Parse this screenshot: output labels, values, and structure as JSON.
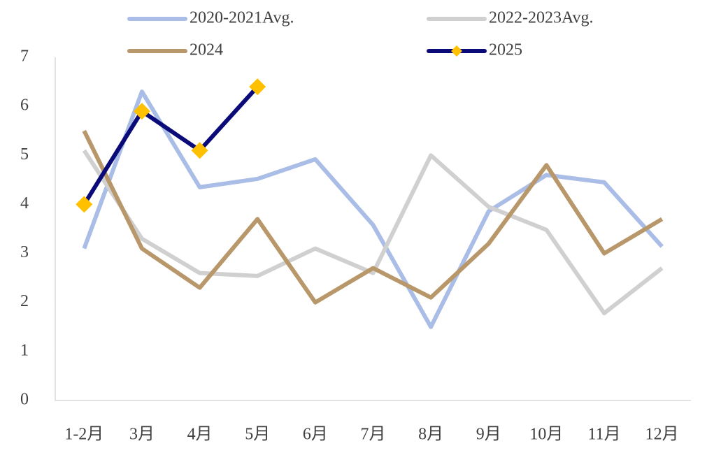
{
  "chart_data": {
    "type": "line",
    "categories": [
      "1-2月",
      "3月",
      "4月",
      "5月",
      "6月",
      "7月",
      "8月",
      "9月",
      "10月",
      "11月",
      "12月"
    ],
    "series": [
      {
        "name": "2020-2021Avg.",
        "color": "#a9bde6",
        "values": [
          3.1,
          6.3,
          4.35,
          4.52,
          4.92,
          3.58,
          1.5,
          3.86,
          4.6,
          4.45,
          3.14
        ]
      },
      {
        "name": "2022-2023Avg.",
        "color": "#d0d0d0",
        "values": [
          5.1,
          3.3,
          2.6,
          2.54,
          3.1,
          2.6,
          5.0,
          3.95,
          3.48,
          1.78,
          2.7
        ]
      },
      {
        "name": "2024",
        "color": "#b8976a",
        "values": [
          5.5,
          3.1,
          2.3,
          3.7,
          2.0,
          2.7,
          2.1,
          3.2,
          4.8,
          3.0,
          3.7
        ]
      },
      {
        "name": "2025",
        "color": "#0a0a78",
        "marker": "diamond",
        "marker_color": "#ffc000",
        "values": [
          4.0,
          5.9,
          5.1,
          6.4,
          null,
          null,
          null,
          null,
          null,
          null,
          null
        ]
      }
    ],
    "ylim": [
      0,
      7
    ],
    "yticks": [
      0,
      1,
      2,
      3,
      4,
      5,
      6,
      7
    ],
    "grid": false,
    "legend": "top"
  }
}
